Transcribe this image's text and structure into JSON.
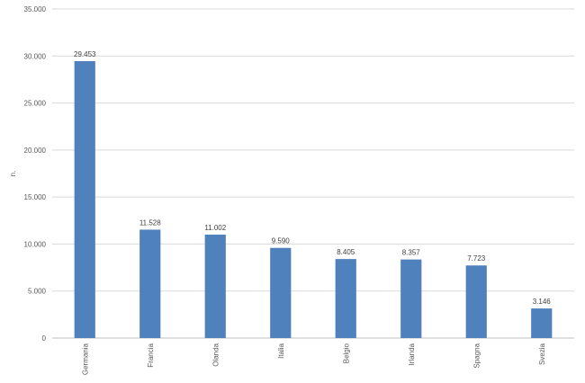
{
  "chart_data": {
    "type": "bar",
    "categories": [
      "Germania",
      "Francia",
      "Olanda",
      "Italia",
      "Belgio",
      "Irlanda",
      "Spagna",
      "Svezia"
    ],
    "values": [
      29453,
      11528,
      11002,
      9590,
      8405,
      8357,
      7723,
      3146
    ],
    "value_labels": [
      "29.453",
      "11.528",
      "11.002",
      "9.590",
      "8.405",
      "8.357",
      "7.723",
      "3.146"
    ],
    "y_ticks": [
      0,
      5000,
      10000,
      15000,
      20000,
      25000,
      30000,
      35000
    ],
    "y_tick_labels": [
      "0",
      "5.000",
      "10.000",
      "15.000",
      "20.000",
      "25.000",
      "30.000",
      "35.000"
    ],
    "ylabel": "n.",
    "xlabel": "",
    "title": "",
    "ylim": [
      0,
      35000
    ],
    "grid": true,
    "bar_color": "#4f81bd"
  }
}
